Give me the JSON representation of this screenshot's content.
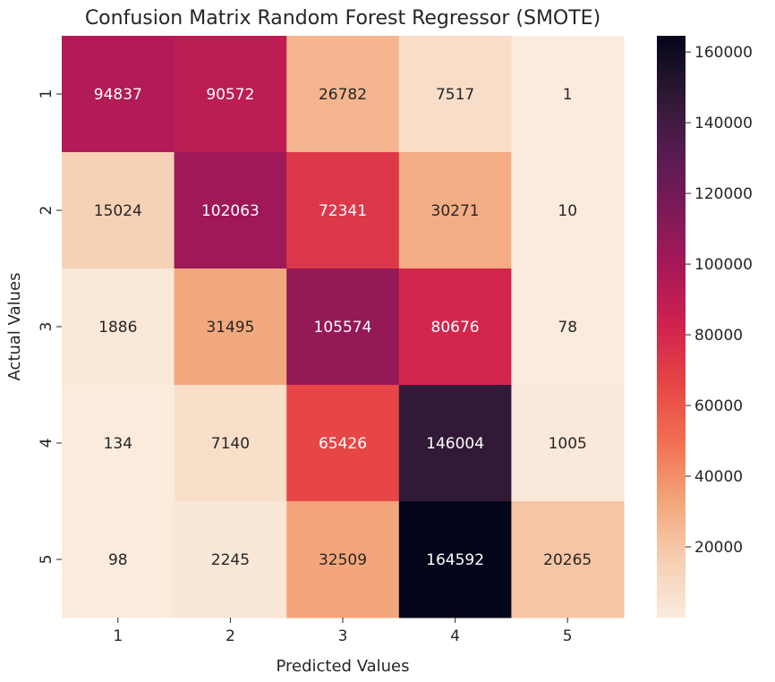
{
  "chart_data": {
    "type": "heatmap",
    "title": "Confusion Matrix Random Forest Regressor (SMOTE)",
    "xlabel": "Predicted Values",
    "ylabel": "Actual Values",
    "x_categories": [
      "1",
      "2",
      "3",
      "4",
      "5"
    ],
    "y_categories": [
      "1",
      "2",
      "3",
      "4",
      "5"
    ],
    "values": [
      [
        94837,
        90572,
        26782,
        7517,
        1
      ],
      [
        15024,
        102063,
        72341,
        30271,
        10
      ],
      [
        1886,
        31495,
        105574,
        80676,
        78
      ],
      [
        134,
        7140,
        65426,
        146004,
        1005
      ],
      [
        98,
        2245,
        32509,
        164592,
        20265
      ]
    ],
    "colormap": "rocket_r",
    "colorbar": {
      "min": 1,
      "max": 164592,
      "ticks": [
        20000,
        40000,
        60000,
        80000,
        100000,
        120000,
        140000,
        160000
      ],
      "tick_labels": [
        "20000",
        "40000",
        "60000",
        "80000",
        "100000",
        "120000",
        "140000",
        "160000"
      ]
    }
  }
}
